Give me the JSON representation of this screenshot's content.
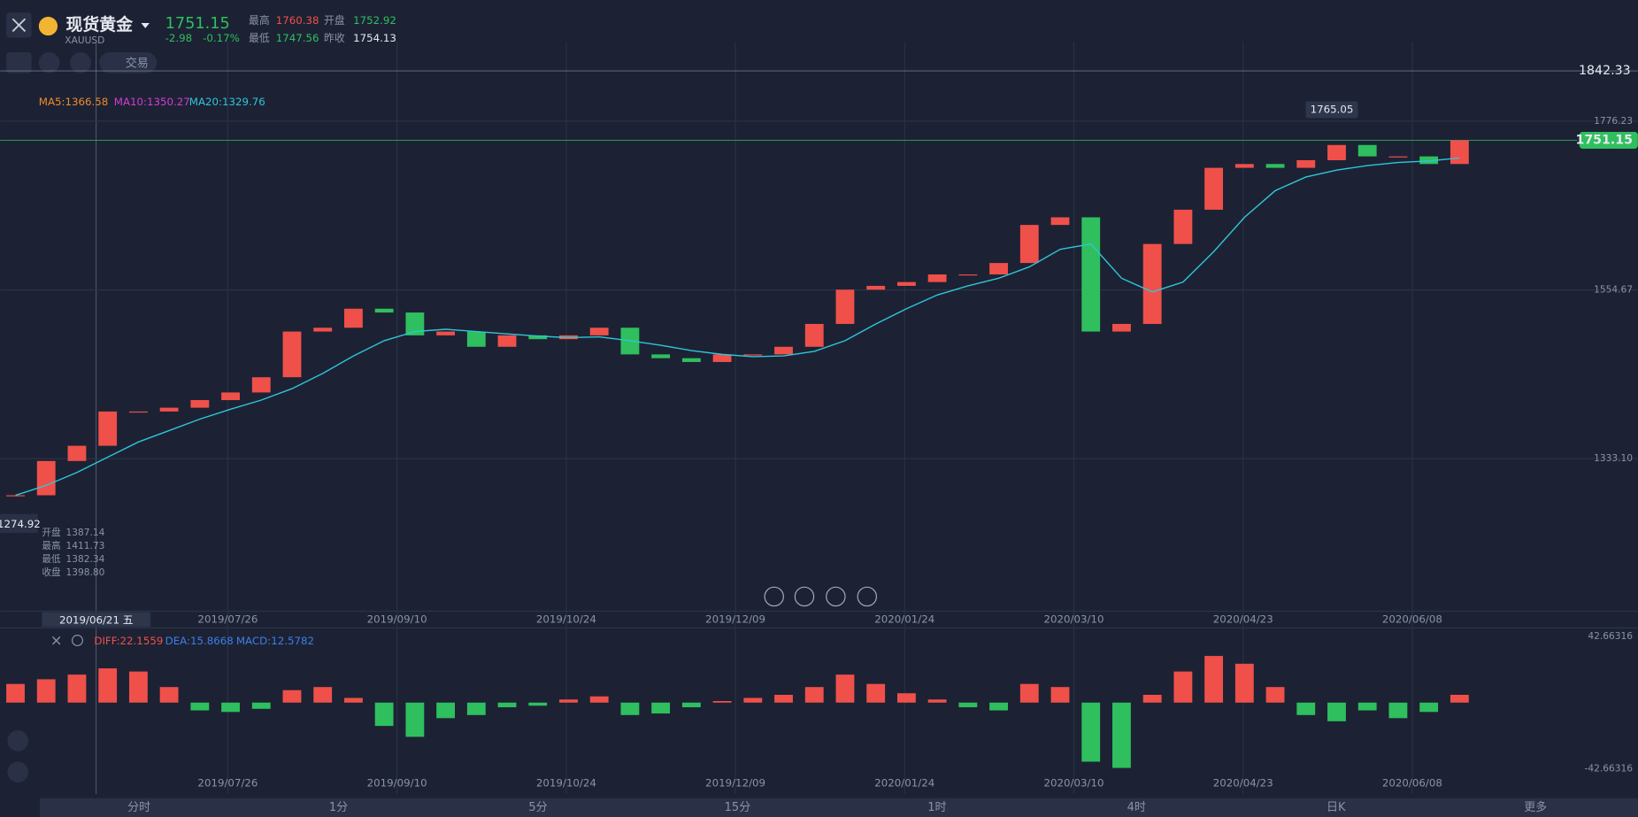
{
  "header": {
    "name": "现货黄金",
    "code": "XAUUSD",
    "price": "1751.15",
    "change": "-2.98",
    "change_pct": "-0.17%",
    "high_label": "最高",
    "high": "1760.38",
    "open_label": "开盘",
    "open": "1752.92",
    "low_label": "最低",
    "low": "1747.56",
    "prev_label": "昨收",
    "prev": "1754.13",
    "trade": "交易"
  },
  "tooltip": {
    "date": "2019/06/21 五",
    "price": "1274.92",
    "rows": [
      [
        "开盘",
        "1387.14"
      ],
      [
        "最高",
        "1411.73"
      ],
      [
        "最低",
        "1382.34"
      ],
      [
        "收盘",
        "1398.80"
      ]
    ]
  },
  "dates": [
    "2019/07/26",
    "2019/09/10",
    "2019/10/24",
    "2019/12/09",
    "2020/01/24",
    "2020/03/10",
    "2020/04/23",
    "2020/06/08"
  ],
  "tabs": [
    "分时",
    "1分",
    "5分",
    "15分",
    "1时",
    "4时",
    "日K",
    "更多"
  ],
  "chart_data": {
    "type": "candlestick",
    "up_color": "#f0504a",
    "down_color": "#2fbf5e",
    "ma_labels": [
      {
        "text": "MA5:1366.58",
        "color": "#f08a2c"
      },
      {
        "text": "MA10:1350.27",
        "color": "#d63ad6"
      }
    ],
    "alert_price": 1842.33,
    "alert_label": "1842.33",
    "last_price": 1751.15,
    "last_label": "1751.15",
    "peak_label": "1765.05",
    "ylim": [
      1132.8,
      1880.5
    ],
    "yticks": [
      1776.23,
      1554.67,
      {
        "value": 1333.1,
        "label": "1333.10"
      }
    ],
    "close": [
      1285,
      1330,
      1350,
      1395,
      1395,
      1400,
      1410,
      1420,
      1440,
      1500,
      1505,
      1530,
      1525,
      1495,
      1500,
      1480,
      1495,
      1490,
      1495,
      1505,
      1470,
      1465,
      1460,
      1470,
      1470,
      1480,
      1510,
      1555,
      1560,
      1565,
      1575,
      1575,
      1590,
      1640,
      1650,
      1500,
      1510,
      1615,
      1660,
      1715,
      1720,
      1715,
      1725,
      1745,
      1730,
      1730,
      1720,
      1751.15
    ],
    "series": [
      {
        "name": "MA20:1329.76",
        "color": "#2fc5d8",
        "values": [
          1285,
          1298,
          1315,
          1335,
          1355,
          1370,
          1385,
          1398,
          1410,
          1425,
          1445,
          1468,
          1488,
          1500,
          1503,
          1500,
          1497,
          1494,
          1492,
          1493,
          1488,
          1482,
          1475,
          1470,
          1467,
          1468,
          1474,
          1488,
          1510,
          1530,
          1548,
          1560,
          1570,
          1585,
          1608,
          1615,
          1570,
          1552,
          1565,
          1605,
          1650,
          1685,
          1703,
          1712,
          1718,
          1722,
          1724,
          1728
        ]
      }
    ],
    "macd": {
      "labels": [
        {
          "text": "DIFF:22.1559",
          "color": "#f0504a"
        },
        {
          "text": "DEA:15.8668",
          "color": "#3f7ee8"
        },
        {
          "text": "MACD:12.5782",
          "color": "#3f7ee8"
        }
      ],
      "ylim": [
        -42.66316,
        42.66316
      ],
      "yticks": [
        42.66316,
        -42.66316
      ],
      "values": [
        12,
        15,
        18,
        22,
        20,
        10,
        -5,
        -6,
        -4,
        8,
        10,
        3,
        -15,
        -22,
        -10,
        -8,
        -3,
        -2,
        2,
        4,
        -8,
        -7,
        -3,
        1,
        3,
        5,
        10,
        18,
        12,
        6,
        2,
        -3,
        -5,
        12,
        10,
        -38,
        -42,
        5,
        20,
        30,
        25,
        10,
        -8,
        -12,
        -5,
        -10,
        -6,
        5
      ]
    }
  }
}
